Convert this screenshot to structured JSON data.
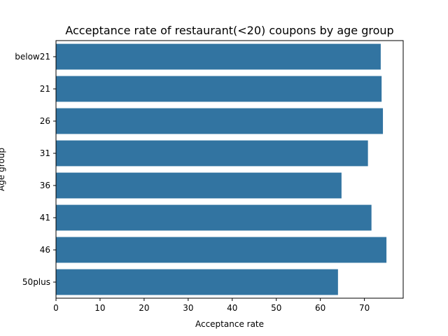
{
  "chart_data": {
    "type": "bar",
    "orientation": "horizontal",
    "title": "Acceptance rate of restaurant(<20) coupons by age group",
    "xlabel": "Acceptance rate",
    "ylabel": "Age group",
    "categories": [
      "below21",
      "21",
      "26",
      "31",
      "36",
      "41",
      "46",
      "50plus"
    ],
    "values": [
      73.7,
      73.9,
      74.2,
      70.8,
      64.8,
      71.6,
      75.0,
      64.0
    ],
    "xlim": [
      0,
      78.8
    ],
    "xticks": [
      0,
      10,
      20,
      30,
      40,
      50,
      60,
      70
    ],
    "grid": false,
    "bar_color": "#3274a1"
  }
}
